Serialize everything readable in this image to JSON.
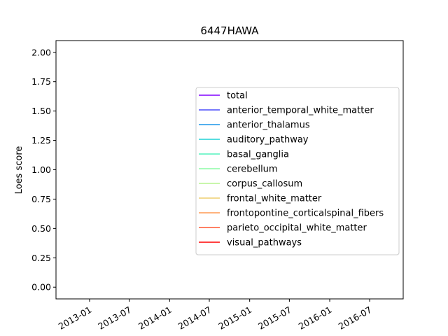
{
  "chart_data": {
    "type": "line",
    "title": "6447HAWA",
    "xlabel": "",
    "ylabel": "Loes score",
    "x_type": "date",
    "xlim": [
      "2012-08-01",
      "2016-12-01"
    ],
    "ylim": [
      -0.1,
      2.1
    ],
    "x_ticks": [
      "2013-01",
      "2013-07",
      "2014-01",
      "2014-07",
      "2015-01",
      "2015-07",
      "2016-01",
      "2016-07"
    ],
    "y_ticks": [
      "0.00",
      "0.25",
      "0.50",
      "0.75",
      "1.00",
      "1.25",
      "1.50",
      "1.75",
      "2.00"
    ],
    "grid": false,
    "legend_position": "center-right",
    "series": [
      {
        "name": "total",
        "color": "#8000ff",
        "x": [],
        "y": []
      },
      {
        "name": "anterior_temporal_white_matter",
        "color": "#4a4dfb",
        "x": [],
        "y": []
      },
      {
        "name": "anterior_thalamus",
        "color": "#1c96e8",
        "x": [],
        "y": []
      },
      {
        "name": "auditory_pathway",
        "color": "#1ed2d5",
        "x": [],
        "y": []
      },
      {
        "name": "basal_ganglia",
        "color": "#52f2bd",
        "x": [],
        "y": []
      },
      {
        "name": "cerebellum",
        "color": "#8cfca6",
        "x": [],
        "y": []
      },
      {
        "name": "corpus_callosum",
        "color": "#b6f38f",
        "x": [],
        "y": []
      },
      {
        "name": "frontal_white_matter",
        "color": "#eecd6e",
        "x": [],
        "y": []
      },
      {
        "name": "frontopontine_corticalspinal_fibers",
        "color": "#ff9a52",
        "x": [],
        "y": []
      },
      {
        "name": "parieto_occipital_white_matter",
        "color": "#ff5730",
        "x": [],
        "y": []
      },
      {
        "name": "visual_pathways",
        "color": "#ff0000",
        "x": [],
        "y": []
      }
    ]
  }
}
